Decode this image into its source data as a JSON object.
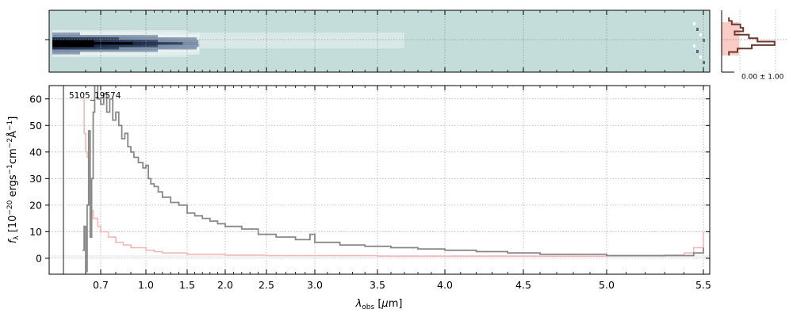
{
  "chart_data": [
    {
      "panel": "2d-spectrum",
      "type": "heatmap",
      "colormap": [
        "#c4dcda",
        "#ffffff",
        "#1a2a4a",
        "#000000"
      ],
      "profile_center": 0.5
    },
    {
      "panel": "1d-spectrum",
      "type": "line",
      "object_label": "5105_19574",
      "xlabel_html": "λ<tspan font-size='9' dy='3'>obs</tspan><tspan dy='-3'> [μm]</tspan>",
      "ylabel_text": "f_λ [10^-20 ergs^-1cm^-2Å^-1]",
      "x_ticks": [
        "0.7",
        "1.0",
        "1.5",
        "2.0",
        "2.5",
        "3.0",
        "3.5",
        "4.0",
        "4.5",
        "5.0",
        "5.5"
      ],
      "x_tick_values": [
        0.7,
        1.0,
        1.5,
        2.0,
        2.5,
        3.0,
        3.5,
        4.0,
        4.5,
        5.0,
        5.5
      ],
      "y_ticks": [
        "0",
        "10",
        "20",
        "30",
        "40",
        "50",
        "60"
      ],
      "y_tick_values": [
        0,
        10,
        20,
        30,
        40,
        50,
        60
      ],
      "ylim": [
        -6,
        65
      ],
      "grid": true,
      "series": [
        {
          "color": "#888888",
          "points": [
            [
              0.58,
              3
            ],
            [
              0.59,
              12
            ],
            [
              0.6,
              -5
            ],
            [
              0.61,
              20
            ],
            [
              0.62,
              48
            ],
            [
              0.63,
              8
            ],
            [
              0.64,
              30
            ],
            [
              0.65,
              55
            ],
            [
              0.66,
              70
            ],
            [
              0.68,
              60
            ],
            [
              0.7,
              58
            ],
            [
              0.72,
              62
            ],
            [
              0.74,
              55
            ],
            [
              0.76,
              60
            ],
            [
              0.78,
              52
            ],
            [
              0.8,
              55
            ],
            [
              0.82,
              50
            ],
            [
              0.84,
              45
            ],
            [
              0.86,
              47
            ],
            [
              0.88,
              42
            ],
            [
              0.9,
              40
            ],
            [
              0.92,
              38
            ],
            [
              0.95,
              36
            ],
            [
              0.98,
              34
            ],
            [
              1.0,
              35
            ],
            [
              1.03,
              30
            ],
            [
              1.06,
              28
            ],
            [
              1.1,
              27
            ],
            [
              1.15,
              25
            ],
            [
              1.2,
              23
            ],
            [
              1.3,
              21
            ],
            [
              1.4,
              20
            ],
            [
              1.5,
              17
            ],
            [
              1.6,
              16
            ],
            [
              1.7,
              15
            ],
            [
              1.8,
              14
            ],
            [
              1.9,
              13
            ],
            [
              2.0,
              12
            ],
            [
              2.2,
              11
            ],
            [
              2.4,
              9
            ],
            [
              2.6,
              8
            ],
            [
              2.8,
              7
            ],
            [
              2.9,
              7
            ],
            [
              2.95,
              9
            ],
            [
              3.0,
              6
            ],
            [
              3.2,
              5
            ],
            [
              3.4,
              4.5
            ],
            [
              3.6,
              4
            ],
            [
              3.8,
              3.5
            ],
            [
              4.0,
              3
            ],
            [
              4.2,
              2.5
            ],
            [
              4.4,
              2
            ],
            [
              4.6,
              1.5
            ],
            [
              4.8,
              1.5
            ],
            [
              5.0,
              1
            ],
            [
              5.2,
              1
            ],
            [
              5.4,
              1
            ],
            [
              5.45,
              2
            ],
            [
              5.5,
              4
            ]
          ]
        },
        {
          "color": "#f4b8b8",
          "points": [
            [
              0.58,
              60
            ],
            [
              0.59,
              47
            ],
            [
              0.6,
              40
            ],
            [
              0.61,
              38
            ],
            [
              0.62,
              30
            ],
            [
              0.63,
              22
            ],
            [
              0.64,
              18
            ],
            [
              0.65,
              15
            ],
            [
              0.68,
              12
            ],
            [
              0.7,
              10
            ],
            [
              0.75,
              8
            ],
            [
              0.8,
              6
            ],
            [
              0.85,
              5
            ],
            [
              0.9,
              4
            ],
            [
              1.0,
              3
            ],
            [
              1.1,
              2.5
            ],
            [
              1.2,
              2
            ],
            [
              1.5,
              1.5
            ],
            [
              2.0,
              1.2
            ],
            [
              2.5,
              1
            ],
            [
              3.0,
              1
            ],
            [
              3.5,
              0.8
            ],
            [
              4.0,
              0.8
            ],
            [
              4.5,
              0.8
            ],
            [
              5.0,
              0.9
            ],
            [
              5.3,
              1.2
            ],
            [
              5.4,
              2
            ],
            [
              5.45,
              4
            ],
            [
              5.5,
              10
            ]
          ]
        }
      ]
    },
    {
      "panel": "profile",
      "type": "line",
      "x_tick_label": "0.00 ± 1.00",
      "series": [
        {
          "color": "#6b3a2e",
          "values": [
            0.1,
            0.15,
            0.3,
            0.35,
            0.2,
            0.45,
            0.6,
            0.9,
            0.5,
            0.25,
            0.1
          ]
        }
      ],
      "band_color": "#f8c8c0"
    }
  ]
}
